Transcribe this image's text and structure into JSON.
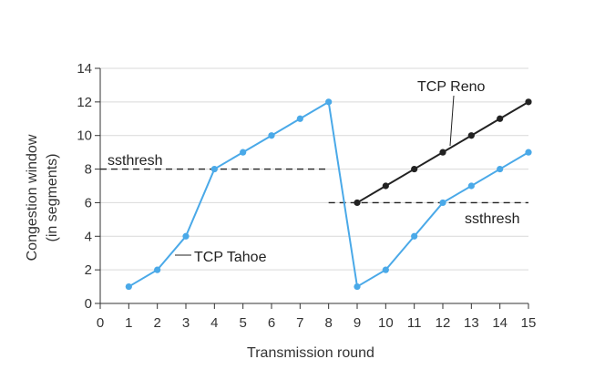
{
  "chart_data": {
    "type": "line",
    "xlabel": "Transmission round",
    "ylabel_lines": [
      "Congestion window",
      "(in segments)"
    ],
    "x_ticks": [
      0,
      1,
      2,
      3,
      4,
      5,
      6,
      7,
      8,
      9,
      10,
      11,
      12,
      13,
      14,
      15
    ],
    "y_ticks": [
      0,
      2,
      4,
      6,
      8,
      10,
      12,
      14
    ],
    "xlim": [
      0,
      15
    ],
    "ylim": [
      0,
      14
    ],
    "grid": "horizontal",
    "series": [
      {
        "name": "TCP Tahoe",
        "color": "#4aa9e8",
        "x": [
          1,
          2,
          3,
          4,
          5,
          6,
          7,
          8,
          9,
          10,
          11,
          12,
          13,
          14,
          15
        ],
        "y": [
          1,
          2,
          4,
          8,
          9,
          10,
          11,
          12,
          1,
          2,
          4,
          6,
          7,
          8,
          9
        ]
      },
      {
        "name": "TCP Reno",
        "color": "#222222",
        "x": [
          9,
          10,
          11,
          12,
          13,
          14,
          15
        ],
        "y": [
          6,
          7,
          8,
          9,
          10,
          11,
          12
        ]
      }
    ],
    "thresholds": [
      {
        "label": "ssthresh",
        "y": 8,
        "x_start": 0,
        "x_end": 8
      },
      {
        "label": "ssthresh",
        "y": 6,
        "x_start": 8,
        "x_end": 15
      }
    ],
    "annotations": {
      "tahoe_label": "TCP Tahoe",
      "reno_label": "TCP Reno",
      "ssthresh_upper": "ssthresh",
      "ssthresh_lower": "ssthresh"
    }
  }
}
